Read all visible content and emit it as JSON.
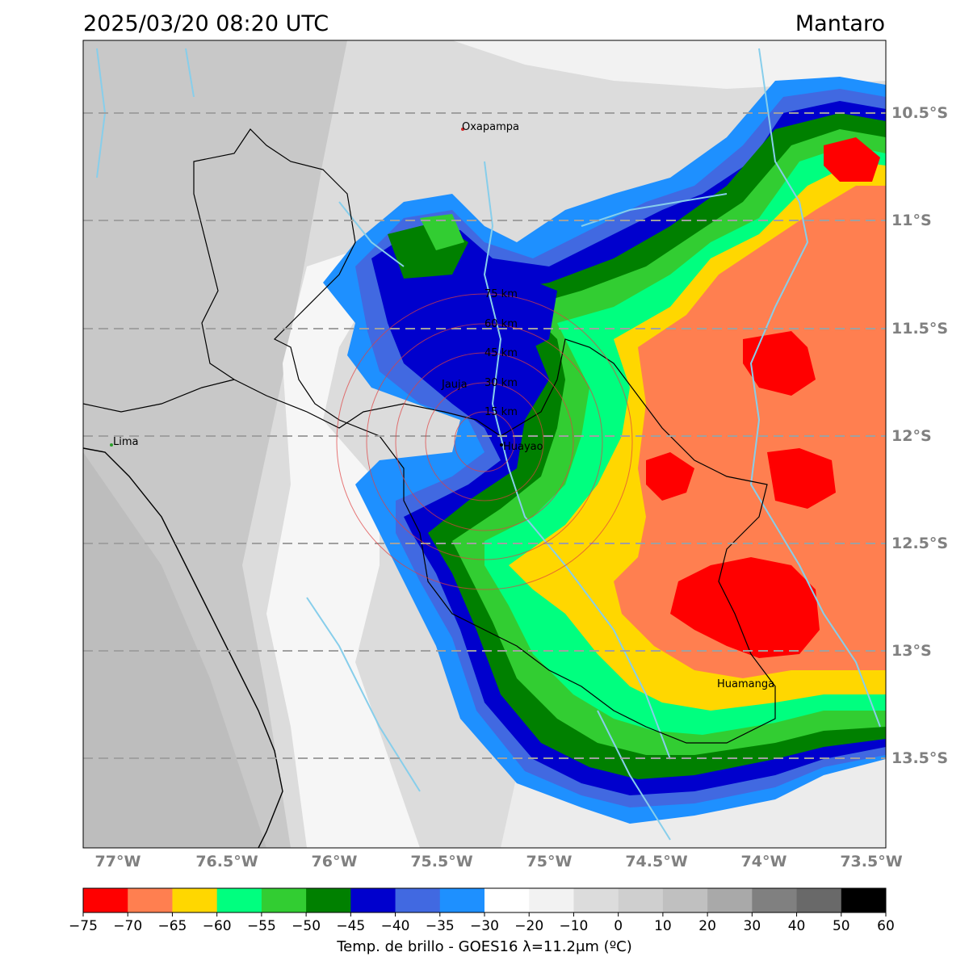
{
  "header": {
    "datetime": "2025/03/20 08:20 UTC",
    "region": "Mantaro"
  },
  "map": {
    "lat_labels": [
      "10.5°S",
      "11°S",
      "11.5°S",
      "12°S",
      "12.5°S",
      "13°S",
      "13.5°S"
    ],
    "lon_labels": [
      "77°W",
      "76.5°W",
      "76°W",
      "75.5°W",
      "75°W",
      "74.5°W",
      "74°W",
      "73.5°W"
    ],
    "places": [
      {
        "name": "Oxapampa",
        "color": "#d62728"
      },
      {
        "name": "Jauja",
        "color": "#000000"
      },
      {
        "name": "Huayao",
        "color": "#000000"
      },
      {
        "name": "Lima",
        "color": "#2ca02c"
      },
      {
        "name": "Huamanga",
        "color": "#000000"
      }
    ],
    "rings": [
      "15 km",
      "30 km",
      "45 km",
      "60 km",
      "75 km"
    ]
  },
  "colorbar": {
    "ticks": [
      "−75",
      "−70",
      "−65",
      "−60",
      "−55",
      "−50",
      "−45",
      "−40",
      "−35",
      "−30",
      "−20",
      "−10",
      "0",
      "10",
      "20",
      "30",
      "40",
      "50",
      "60"
    ],
    "colors": [
      "#ff0000",
      "#ff7f50",
      "#ffd700",
      "#00ff7f",
      "#32cd32",
      "#008000",
      "#0000cd",
      "#4169e1",
      "#1e90ff",
      "#ffffff",
      "#f2f2f2",
      "#dcdcdc",
      "#cfcfcf",
      "#c0c0c0",
      "#a9a9a9",
      "#808080",
      "#696969",
      "#000000"
    ],
    "label": "Temp. de brillo - GOES16 λ=11.2μm (ºC)"
  }
}
